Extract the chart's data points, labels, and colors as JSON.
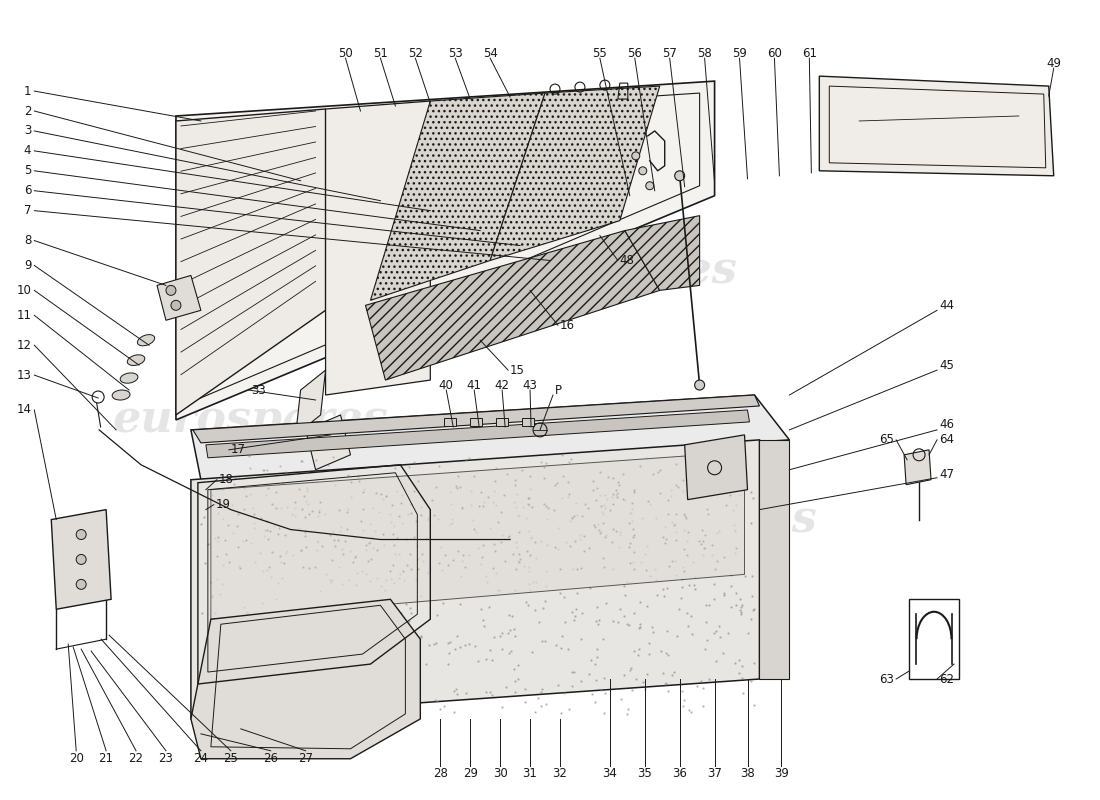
{
  "background_color": "#ffffff",
  "watermark_text": "eurospares",
  "fig_width": 11.0,
  "fig_height": 8.0,
  "dpi": 100,
  "line_color": "#1a1a1a",
  "text_color": "#1a1a1a",
  "lw": 0.9,
  "fs": 8.5
}
